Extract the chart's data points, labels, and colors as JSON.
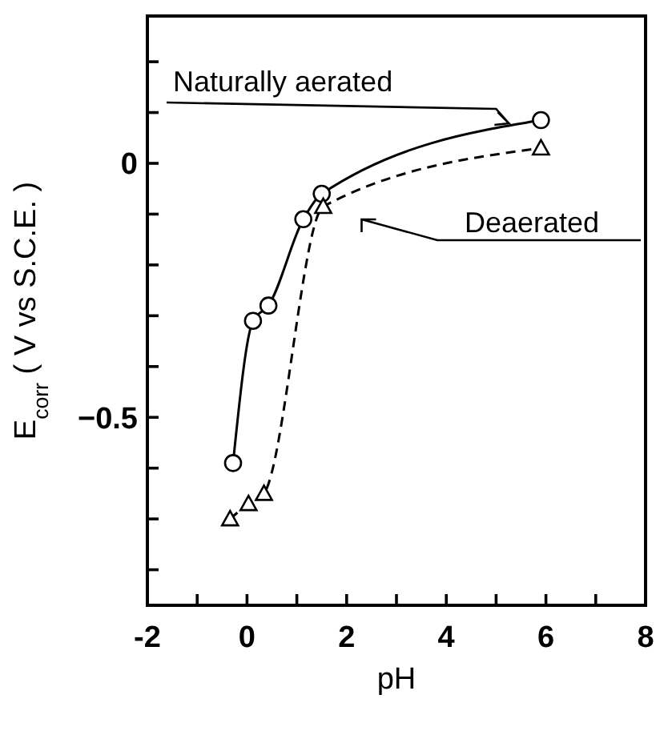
{
  "chart_data": {
    "type": "line",
    "xlabel": "pH",
    "ylabel": "E$_{corr}$ ( V vs S.C.E. )",
    "xlim": [
      -2,
      8
    ],
    "ylim": [
      -0.87,
      0.29
    ],
    "xticks": [
      -2,
      {
        "value": -1,
        "label": null
      },
      0,
      {
        "value": 1,
        "label": null
      },
      2,
      {
        "value": 3,
        "label": null
      },
      4,
      {
        "value": 5,
        "label": null
      },
      6,
      {
        "value": 7,
        "label": null
      },
      8
    ],
    "yticks": [
      {
        "value": 0.2,
        "label": null
      },
      {
        "value": 0.1,
        "label": null
      },
      0,
      {
        "value": -0.1,
        "label": null
      },
      {
        "value": -0.2,
        "label": null
      },
      {
        "value": -0.3,
        "label": null
      },
      {
        "value": -0.4,
        "label": null
      },
      {
        "value": -0.5,
        "label": "−0.5"
      },
      {
        "value": -0.6,
        "label": null
      },
      {
        "value": -0.7,
        "label": null
      },
      {
        "value": -0.8,
        "label": null
      }
    ],
    "series": [
      {
        "name": "Naturally aerated",
        "color": "#000000",
        "marker": "circle",
        "line_style": "solid",
        "x": [
          -0.28,
          0.12,
          0.43,
          1.13,
          1.5,
          5.9
        ],
        "values": [
          -0.59,
          -0.31,
          -0.28,
          -0.11,
          -0.06,
          0.085
        ]
      },
      {
        "name": "Deaerated",
        "color": "#000000",
        "marker": "triangle",
        "line_style": "dashed",
        "x": [
          -0.34,
          0.03,
          0.34,
          1.53,
          5.9
        ],
        "values": [
          -0.7,
          -0.67,
          -0.65,
          -0.085,
          0.03
        ]
      }
    ]
  }
}
